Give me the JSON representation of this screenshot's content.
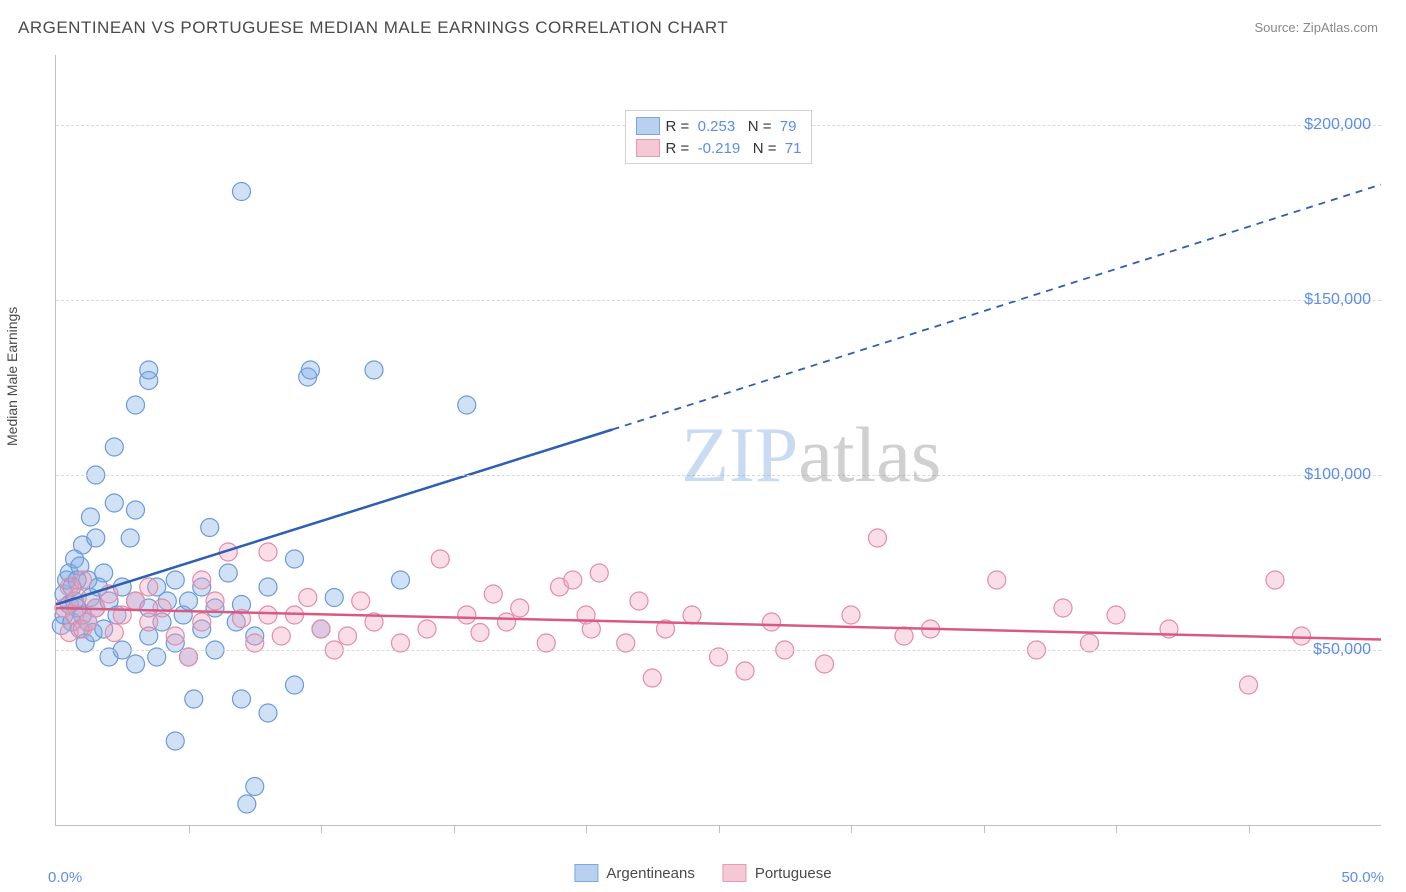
{
  "chart": {
    "title": "ARGENTINEAN VS PORTUGUESE MEDIAN MALE EARNINGS CORRELATION CHART",
    "source": "Source: ZipAtlas.com",
    "watermark": {
      "part1": "ZIP",
      "part2": "atlas"
    },
    "type": "scatter",
    "background_color": "#ffffff",
    "grid_color": "#d9d9d9",
    "axis_color": "#bfbfbf",
    "title_color": "#4a4a4a",
    "title_fontsize": 17,
    "x_axis": {
      "min_pct": 0.0,
      "max_pct": 50.0,
      "min_label": "0.0%",
      "max_label": "50.0%",
      "tick_positions_pct": [
        5,
        10,
        15,
        20,
        25,
        30,
        35,
        40,
        45
      ],
      "label_color": "#5b8def"
    },
    "y_axis": {
      "title": "Median Male Earnings",
      "min": 0,
      "max": 220000,
      "ticks": [
        {
          "value": 50000,
          "label": "$50,000"
        },
        {
          "value": 100000,
          "label": "$100,000"
        },
        {
          "value": 150000,
          "label": "$150,000"
        },
        {
          "value": 200000,
          "label": "$200,000"
        }
      ],
      "label_color": "#5b8def",
      "title_color": "#4a4a4a"
    },
    "series": [
      {
        "name": "Argentineans",
        "color_fill": "rgba(120, 170, 230, 0.35)",
        "color_stroke": "#6a9bd8",
        "swatch_fill": "#b9d1ee",
        "swatch_stroke": "#7aa8de",
        "marker_radius": 9,
        "trend": {
          "solid": {
            "x1_pct": 0,
            "y1": 63000,
            "x2_pct": 21,
            "y2": 113000,
            "color": "#2e5fb3",
            "width": 2.5
          },
          "dashed": {
            "x1_pct": 21,
            "y1": 113000,
            "x2_pct": 50,
            "y2": 183000,
            "color": "#2e5fb3",
            "width": 1.8,
            "dash": "7 6"
          }
        },
        "stats": {
          "R": "0.253",
          "N": "79"
        },
        "points": [
          {
            "x": 0.2,
            "y": 57000
          },
          {
            "x": 0.3,
            "y": 60000
          },
          {
            "x": 0.3,
            "y": 66000
          },
          {
            "x": 0.4,
            "y": 70000
          },
          {
            "x": 0.5,
            "y": 63000
          },
          {
            "x": 0.5,
            "y": 72000
          },
          {
            "x": 0.6,
            "y": 58000
          },
          {
            "x": 0.6,
            "y": 68000
          },
          {
            "x": 0.7,
            "y": 64000
          },
          {
            "x": 0.7,
            "y": 76000
          },
          {
            "x": 0.8,
            "y": 62000
          },
          {
            "x": 0.8,
            "y": 70000
          },
          {
            "x": 0.9,
            "y": 56000
          },
          {
            "x": 0.9,
            "y": 74000
          },
          {
            "x": 1.0,
            "y": 60000
          },
          {
            "x": 1.0,
            "y": 80000
          },
          {
            "x": 1.1,
            "y": 52000
          },
          {
            "x": 1.2,
            "y": 58000
          },
          {
            "x": 1.2,
            "y": 70000
          },
          {
            "x": 1.3,
            "y": 65000
          },
          {
            "x": 1.3,
            "y": 88000
          },
          {
            "x": 1.4,
            "y": 55000
          },
          {
            "x": 1.5,
            "y": 62000
          },
          {
            "x": 1.5,
            "y": 82000
          },
          {
            "x": 1.5,
            "y": 100000
          },
          {
            "x": 1.6,
            "y": 68000
          },
          {
            "x": 1.8,
            "y": 56000
          },
          {
            "x": 1.8,
            "y": 72000
          },
          {
            "x": 2.0,
            "y": 48000
          },
          {
            "x": 2.0,
            "y": 64000
          },
          {
            "x": 2.2,
            "y": 92000
          },
          {
            "x": 2.2,
            "y": 108000
          },
          {
            "x": 2.3,
            "y": 60000
          },
          {
            "x": 2.5,
            "y": 50000
          },
          {
            "x": 2.5,
            "y": 68000
          },
          {
            "x": 2.8,
            "y": 82000
          },
          {
            "x": 3.0,
            "y": 46000
          },
          {
            "x": 3.0,
            "y": 64000
          },
          {
            "x": 3.0,
            "y": 90000
          },
          {
            "x": 3.0,
            "y": 120000
          },
          {
            "x": 3.5,
            "y": 54000
          },
          {
            "x": 3.5,
            "y": 62000
          },
          {
            "x": 3.5,
            "y": 127000
          },
          {
            "x": 3.5,
            "y": 130000
          },
          {
            "x": 3.8,
            "y": 68000
          },
          {
            "x": 3.8,
            "y": 48000
          },
          {
            "x": 4.0,
            "y": 58000
          },
          {
            "x": 4.2,
            "y": 64000
          },
          {
            "x": 4.5,
            "y": 24000
          },
          {
            "x": 4.5,
            "y": 52000
          },
          {
            "x": 4.5,
            "y": 70000
          },
          {
            "x": 4.8,
            "y": 60000
          },
          {
            "x": 5.0,
            "y": 48000
          },
          {
            "x": 5.0,
            "y": 64000
          },
          {
            "x": 5.2,
            "y": 36000
          },
          {
            "x": 5.5,
            "y": 56000
          },
          {
            "x": 5.5,
            "y": 68000
          },
          {
            "x": 5.8,
            "y": 85000
          },
          {
            "x": 6.0,
            "y": 50000
          },
          {
            "x": 6.0,
            "y": 62000
          },
          {
            "x": 6.5,
            "y": 72000
          },
          {
            "x": 6.8,
            "y": 58000
          },
          {
            "x": 7.0,
            "y": 181000
          },
          {
            "x": 7.0,
            "y": 36000
          },
          {
            "x": 7.0,
            "y": 63000
          },
          {
            "x": 7.2,
            "y": 6000
          },
          {
            "x": 7.5,
            "y": 54000
          },
          {
            "x": 8.0,
            "y": 32000
          },
          {
            "x": 8.0,
            "y": 68000
          },
          {
            "x": 9.0,
            "y": 40000
          },
          {
            "x": 9.0,
            "y": 76000
          },
          {
            "x": 9.5,
            "y": 128000
          },
          {
            "x": 9.6,
            "y": 130000
          },
          {
            "x": 10.0,
            "y": 56000
          },
          {
            "x": 10.5,
            "y": 65000
          },
          {
            "x": 12.0,
            "y": 130000
          },
          {
            "x": 13.0,
            "y": 70000
          },
          {
            "x": 15.5,
            "y": 120000
          },
          {
            "x": 7.5,
            "y": 11000
          }
        ]
      },
      {
        "name": "Portuguese",
        "color_fill": "rgba(240, 160, 185, 0.35)",
        "color_stroke": "#e58ba8",
        "swatch_fill": "#f5c8d5",
        "swatch_stroke": "#e89bb2",
        "marker_radius": 9,
        "trend": {
          "solid": {
            "x1_pct": 0,
            "y1": 62000,
            "x2_pct": 50,
            "y2": 53000,
            "color": "#d85a82",
            "width": 2.5
          }
        },
        "stats": {
          "R": "-0.219",
          "N": "71"
        },
        "points": [
          {
            "x": 0.3,
            "y": 62000
          },
          {
            "x": 0.5,
            "y": 55000
          },
          {
            "x": 0.5,
            "y": 68000
          },
          {
            "x": 0.7,
            "y": 60000
          },
          {
            "x": 0.8,
            "y": 65000
          },
          {
            "x": 1.0,
            "y": 56000
          },
          {
            "x": 1.0,
            "y": 70000
          },
          {
            "x": 1.2,
            "y": 58000
          },
          {
            "x": 1.5,
            "y": 62000
          },
          {
            "x": 2.0,
            "y": 66000
          },
          {
            "x": 2.2,
            "y": 55000
          },
          {
            "x": 2.5,
            "y": 60000
          },
          {
            "x": 3.0,
            "y": 64000
          },
          {
            "x": 3.5,
            "y": 58000
          },
          {
            "x": 3.5,
            "y": 68000
          },
          {
            "x": 4.0,
            "y": 62000
          },
          {
            "x": 4.5,
            "y": 54000
          },
          {
            "x": 5.0,
            "y": 48000
          },
          {
            "x": 5.5,
            "y": 58000
          },
          {
            "x": 5.5,
            "y": 70000
          },
          {
            "x": 6.0,
            "y": 64000
          },
          {
            "x": 6.5,
            "y": 78000
          },
          {
            "x": 7.0,
            "y": 59000
          },
          {
            "x": 7.5,
            "y": 52000
          },
          {
            "x": 8.0,
            "y": 60000
          },
          {
            "x": 8.0,
            "y": 78000
          },
          {
            "x": 8.5,
            "y": 54000
          },
          {
            "x": 9.0,
            "y": 60000
          },
          {
            "x": 9.5,
            "y": 65000
          },
          {
            "x": 10.0,
            "y": 56000
          },
          {
            "x": 10.5,
            "y": 50000
          },
          {
            "x": 11.0,
            "y": 54000
          },
          {
            "x": 11.5,
            "y": 64000
          },
          {
            "x": 12.0,
            "y": 58000
          },
          {
            "x": 13.0,
            "y": 52000
          },
          {
            "x": 14.0,
            "y": 56000
          },
          {
            "x": 14.5,
            "y": 76000
          },
          {
            "x": 15.5,
            "y": 60000
          },
          {
            "x": 16.0,
            "y": 55000
          },
          {
            "x": 16.5,
            "y": 66000
          },
          {
            "x": 17.0,
            "y": 58000
          },
          {
            "x": 17.5,
            "y": 62000
          },
          {
            "x": 18.5,
            "y": 52000
          },
          {
            "x": 19.0,
            "y": 68000
          },
          {
            "x": 19.5,
            "y": 70000
          },
          {
            "x": 20.0,
            "y": 60000
          },
          {
            "x": 20.2,
            "y": 56000
          },
          {
            "x": 20.5,
            "y": 72000
          },
          {
            "x": 21.5,
            "y": 52000
          },
          {
            "x": 22.0,
            "y": 64000
          },
          {
            "x": 22.5,
            "y": 42000
          },
          {
            "x": 23.0,
            "y": 56000
          },
          {
            "x": 24.0,
            "y": 60000
          },
          {
            "x": 25.0,
            "y": 48000
          },
          {
            "x": 26.0,
            "y": 44000
          },
          {
            "x": 27.0,
            "y": 58000
          },
          {
            "x": 27.5,
            "y": 50000
          },
          {
            "x": 29.0,
            "y": 46000
          },
          {
            "x": 30.0,
            "y": 60000
          },
          {
            "x": 31.0,
            "y": 82000
          },
          {
            "x": 32.0,
            "y": 54000
          },
          {
            "x": 33.0,
            "y": 56000
          },
          {
            "x": 35.5,
            "y": 70000
          },
          {
            "x": 37.0,
            "y": 50000
          },
          {
            "x": 38.0,
            "y": 62000
          },
          {
            "x": 39.0,
            "y": 52000
          },
          {
            "x": 40.0,
            "y": 60000
          },
          {
            "x": 42.0,
            "y": 56000
          },
          {
            "x": 45.0,
            "y": 40000
          },
          {
            "x": 46.0,
            "y": 70000
          },
          {
            "x": 47.0,
            "y": 54000
          }
        ]
      }
    ],
    "legend_top": {
      "R_label": "R =",
      "N_label": "N ="
    }
  }
}
